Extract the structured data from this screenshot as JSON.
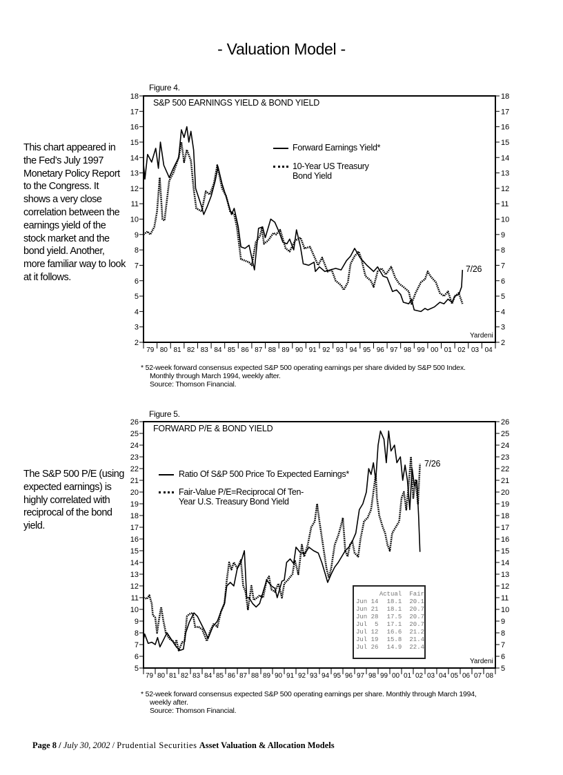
{
  "page_title": "- Valuation Model -",
  "side_text_1": "This chart appeared in the Fed’s July 1997 Monetary Policy Report to the Congress. It shows a very close correlation between the earnings yield of the stock market and the bond yield. Another, more familiar way to look at it follows.",
  "side_text_2": "The S&P 500 P/E (using expected earnings) is highly correlated with reciprocal of the bond yield.",
  "footer": {
    "page": "Page 8 /",
    "date": "July 30, 2002",
    "sep": "/",
    "firm": "Prudential Securities",
    "report": "Asset Valuation & Allocation Models"
  },
  "chart_data": [
    {
      "type": "line",
      "figure_label": "Figure 4.",
      "title": "S&P 500 EARNINGS YIELD & BOND YIELD",
      "source_tag": "Yardeni",
      "end_label": "7/26",
      "ylim": [
        2,
        18
      ],
      "yticks": [
        2,
        3,
        4,
        5,
        6,
        7,
        8,
        9,
        10,
        11,
        12,
        13,
        14,
        15,
        16,
        17,
        18
      ],
      "xticklabels": [
        "79",
        "80",
        "81",
        "82",
        "83",
        "84",
        "85",
        "86",
        "87",
        "88",
        "89",
        "90",
        "91",
        "92",
        "93",
        "94",
        "95",
        "96",
        "97",
        "98",
        "99",
        "00",
        "01",
        "02",
        "03",
        "04"
      ],
      "xlim": [
        1979,
        2005
      ],
      "legend_placement": "upper-center",
      "footnote": [
        "*   52-week forward consensus expected S&P 500 operating earnings per share divided by S&P 500 Index.",
        "Monthly through March 1994, weekly after.",
        "Source: Thomson Financial."
      ],
      "series": [
        {
          "name": "Forward Earnings Yield*",
          "style": "solid",
          "color": "#000000",
          "x": [
            1979.0,
            1979.1,
            1979.3,
            1979.6,
            1979.9,
            1980.1,
            1980.25,
            1980.5,
            1980.9,
            1981.2,
            1981.6,
            1981.8,
            1982.0,
            1982.2,
            1982.35,
            1982.5,
            1982.7,
            1982.85,
            1983.3,
            1983.45,
            1983.7,
            1984.0,
            1984.3,
            1984.5,
            1984.8,
            1985.2,
            1985.5,
            1985.7,
            1986.0,
            1986.2,
            1986.5,
            1986.8,
            1987.0,
            1987.2,
            1987.5,
            1987.8,
            1988.0,
            1988.4,
            1988.7,
            1989.0,
            1989.3,
            1989.6,
            1989.8,
            1990.1,
            1990.3,
            1990.6,
            1990.8,
            1991.2,
            1991.6,
            1991.7,
            1992.0,
            1992.4,
            1992.8,
            1993.2,
            1993.6,
            1994.0,
            1994.3,
            1994.6,
            1995.0,
            1995.5,
            1996.0,
            1996.3,
            1996.7,
            1997.0,
            1997.4,
            1997.7,
            1998.0,
            1998.2,
            1998.6,
            1998.8,
            1999.0,
            1999.5,
            1999.8,
            2000.0,
            2000.5,
            2000.9,
            2001.2,
            2001.5,
            2001.8,
            2002.0,
            2002.3,
            2002.5,
            2002.57
          ],
          "y": [
            13.6,
            12.6,
            14.2,
            13.7,
            14.6,
            13.3,
            15.0,
            13.5,
            12.7,
            13.3,
            14.0,
            15.8,
            15.3,
            16.0,
            15.0,
            15.7,
            14.5,
            12.0,
            10.8,
            10.3,
            10.8,
            11.5,
            12.5,
            13.4,
            12.3,
            11.2,
            10.3,
            10.7,
            9.5,
            8.2,
            8.1,
            8.3,
            7.5,
            6.7,
            9.4,
            9.5,
            8.8,
            10.0,
            9.8,
            9.2,
            8.5,
            8.4,
            8.7,
            8.0,
            9.3,
            8.2,
            7.1,
            7.0,
            7.2,
            6.6,
            6.9,
            6.6,
            6.7,
            6.8,
            6.7,
            7.3,
            7.6,
            8.1,
            7.5,
            7.0,
            6.6,
            6.9,
            6.3,
            6.2,
            5.3,
            5.4,
            5.1,
            4.6,
            4.5,
            4.8,
            4.1,
            4.0,
            4.2,
            4.1,
            4.3,
            4.6,
            4.5,
            4.8,
            4.6,
            5.0,
            5.1,
            5.6,
            6.7
          ]
        },
        {
          "name": "10-Year US Treasury Bond Yield",
          "style": "dotted",
          "color": "#000000",
          "x": [
            1979.0,
            1979.3,
            1979.5,
            1979.8,
            1980.0,
            1980.2,
            1980.4,
            1980.55,
            1980.9,
            1981.2,
            1981.6,
            1981.8,
            1982.0,
            1982.2,
            1982.5,
            1982.7,
            1982.9,
            1983.3,
            1983.6,
            1983.9,
            1984.2,
            1984.45,
            1984.8,
            1985.1,
            1985.4,
            1985.7,
            1985.9,
            1986.2,
            1986.5,
            1986.8,
            1987.0,
            1987.3,
            1987.6,
            1987.75,
            1987.9,
            1988.2,
            1988.6,
            1988.8,
            1989.1,
            1989.5,
            1989.8,
            1990.2,
            1990.6,
            1990.9,
            1991.3,
            1991.6,
            1991.9,
            1992.2,
            1992.6,
            1992.9,
            1993.2,
            1993.6,
            1993.8,
            1994.1,
            1994.3,
            1994.6,
            1994.9,
            1995.1,
            1995.4,
            1995.8,
            1996.0,
            1996.3,
            1996.6,
            1996.9,
            1997.3,
            1997.6,
            1997.9,
            1998.2,
            1998.6,
            1998.8,
            1999.1,
            1999.5,
            1999.8,
            2000.0,
            2000.2,
            2000.6,
            2000.9,
            2001.2,
            2001.5,
            2001.8,
            2002.0,
            2002.3,
            2002.57
          ],
          "y": [
            9.0,
            9.2,
            9.0,
            9.5,
            10.5,
            12.7,
            10.0,
            9.9,
            12.5,
            13.0,
            14.0,
            15.0,
            13.7,
            14.5,
            13.8,
            12.0,
            10.7,
            10.5,
            11.8,
            11.6,
            12.3,
            13.5,
            12.0,
            11.5,
            10.5,
            10.3,
            9.5,
            7.4,
            7.3,
            7.2,
            7.0,
            8.5,
            8.9,
            9.4,
            8.4,
            8.6,
            9.1,
            9.0,
            9.3,
            8.1,
            7.9,
            8.6,
            8.8,
            8.1,
            8.2,
            7.6,
            7.0,
            7.5,
            6.6,
            6.7,
            6.0,
            5.7,
            5.4,
            5.9,
            7.1,
            7.6,
            7.9,
            7.4,
            6.3,
            6.0,
            5.6,
            6.6,
            6.8,
            6.4,
            6.9,
            6.2,
            5.8,
            5.6,
            5.3,
            4.5,
            5.2,
            5.9,
            6.1,
            6.6,
            6.3,
            5.9,
            5.2,
            5.0,
            5.3,
            4.5,
            5.0,
            5.2,
            4.5
          ]
        }
      ]
    },
    {
      "type": "line",
      "figure_label": "Figure 5.",
      "title": "FORWARD P/E & BOND YIELD",
      "source_tag": "Yardeni",
      "end_label": "7/26",
      "ylim": [
        5,
        26
      ],
      "yticks": [
        5,
        6,
        7,
        8,
        9,
        10,
        11,
        12,
        13,
        14,
        15,
        16,
        17,
        18,
        19,
        20,
        21,
        22,
        23,
        24,
        25,
        26
      ],
      "xticklabels": [
        "79",
        "80",
        "81",
        "82",
        "83",
        "84",
        "85",
        "86",
        "87",
        "88",
        "89",
        "90",
        "91",
        "92",
        "93",
        "94",
        "95",
        "96",
        "97",
        "98",
        "99",
        "00",
        "01",
        "02",
        "03",
        "04",
        "05",
        "06",
        "07",
        "08"
      ],
      "xlim": [
        1979,
        2009
      ],
      "legend_placement": "upper-left",
      "footnote": [
        "*   52-week forward consensus expected S&P 500 operating earnings per share. Monthly through March 1994,",
        "weekly after.",
        "Source: Thomson Financial."
      ],
      "table": {
        "headers": [
          "",
          "Actual",
          "Fair"
        ],
        "rows": [
          [
            "Jun 14",
            "18.1",
            "20.1"
          ],
          [
            "Jun 21",
            "18.1",
            "20.7"
          ],
          [
            "Jun 28",
            "17.5",
            "20.7"
          ],
          [
            "Jul  5",
            "17.1",
            "20.7"
          ],
          [
            "Jul 12",
            "16.6",
            "21.2"
          ],
          [
            "Jul 19",
            "15.8",
            "21.4"
          ],
          [
            "Jul 26",
            "14.9",
            "22.4"
          ]
        ]
      },
      "series": [
        {
          "name": "Ratio Of S&P 500 Price To Expected Earnings*",
          "style": "solid",
          "color": "#000000",
          "x": [
            1979.0,
            1979.1,
            1979.4,
            1979.7,
            1980.0,
            1980.2,
            1980.4,
            1980.8,
            1981.0,
            1981.4,
            1981.8,
            1982.1,
            1982.4,
            1982.6,
            1982.9,
            1983.3,
            1983.6,
            1983.9,
            1984.3,
            1984.5,
            1984.9,
            1985.3,
            1985.6,
            1985.9,
            1986.1,
            1986.4,
            1986.7,
            1987.0,
            1987.3,
            1987.6,
            1987.8,
            1988.0,
            1988.3,
            1988.6,
            1988.9,
            1989.2,
            1989.5,
            1989.9,
            1990.2,
            1990.4,
            1990.8,
            1991.0,
            1991.2,
            1991.5,
            1991.8,
            1992.0,
            1992.4,
            1992.8,
            1993.1,
            1993.5,
            1993.9,
            1994.2,
            1994.5,
            1994.7,
            1995.0,
            1995.3,
            1995.6,
            1995.9,
            1996.2,
            1996.5,
            1996.8,
            1997.1,
            1997.4,
            1997.7,
            1998.0,
            1998.2,
            1998.4,
            1998.6,
            1998.8,
            1999.0,
            1999.2,
            1999.5,
            1999.7,
            1999.9,
            2000.1,
            2000.4,
            2000.6,
            2000.9,
            2001.1,
            2001.3,
            2001.5,
            2001.7,
            2001.9,
            2002.1,
            2002.3,
            2002.45,
            2002.57
          ],
          "y": [
            7.4,
            7.9,
            7.1,
            7.2,
            7.0,
            7.6,
            6.8,
            7.6,
            8.0,
            7.4,
            6.8,
            6.5,
            6.6,
            8.0,
            8.9,
            9.7,
            9.4,
            8.8,
            8.0,
            7.5,
            8.5,
            9.0,
            9.8,
            10.5,
            12.0,
            12.3,
            12.0,
            13.5,
            14.0,
            15.0,
            11.0,
            11.0,
            10.5,
            10.2,
            10.5,
            11.5,
            12.5,
            12.0,
            11.8,
            11.0,
            12.4,
            12.5,
            14.0,
            14.3,
            13.9,
            15.3,
            14.8,
            14.8,
            15.3,
            15.0,
            14.8,
            14.0,
            13.0,
            12.3,
            13.0,
            13.6,
            14.0,
            14.5,
            15.0,
            15.3,
            15.8,
            16.5,
            18.5,
            19.0,
            20.0,
            22.0,
            21.5,
            22.5,
            21.0,
            24.0,
            25.2,
            24.5,
            22.5,
            25.2,
            23.5,
            24.0,
            22.5,
            23.0,
            21.0,
            22.3,
            21.0,
            18.5,
            22.0,
            20.5,
            21.0,
            18.0,
            14.9
          ]
        },
        {
          "name": "Fair-Value P/E=Reciprocal Of Ten-Year U.S. Treasury Bond Yield",
          "style": "dotted",
          "color": "#000000",
          "x": [
            1979.0,
            1979.3,
            1979.5,
            1979.7,
            1979.8,
            1980.0,
            1980.15,
            1980.3,
            1980.5,
            1980.7,
            1980.9,
            1981.2,
            1981.5,
            1981.7,
            1981.8,
            1982.0,
            1982.3,
            1982.5,
            1982.7,
            1982.9,
            1983.2,
            1983.4,
            1983.7,
            1984.0,
            1984.4,
            1984.7,
            1985.0,
            1985.3,
            1985.6,
            1985.9,
            1986.1,
            1986.3,
            1986.5,
            1986.7,
            1987.0,
            1987.3,
            1987.5,
            1987.7,
            1987.9,
            1988.2,
            1988.4,
            1988.7,
            1988.9,
            1989.2,
            1989.5,
            1989.7,
            1989.9,
            1990.2,
            1990.5,
            1990.8,
            1991.0,
            1991.3,
            1991.7,
            1991.9,
            1992.2,
            1992.5,
            1992.7,
            1993.0,
            1993.3,
            1993.6,
            1993.8,
            1994.0,
            1994.3,
            1994.6,
            1994.8,
            1995.0,
            1995.3,
            1995.6,
            1995.8,
            1996.0,
            1996.2,
            1996.4,
            1996.6,
            1996.8,
            1997.0,
            1997.3,
            1997.5,
            1997.8,
            1998.1,
            1998.4,
            1998.6,
            1998.8,
            1998.9,
            1999.1,
            1999.4,
            1999.6,
            1999.8,
            2000.0,
            2000.2,
            2000.5,
            2000.8,
            2001.0,
            2001.2,
            2001.4,
            2001.6,
            2001.8,
            2002.0,
            2002.2,
            2002.4,
            2002.57
          ],
          "y": [
            11.0,
            10.9,
            11.2,
            10.5,
            9.5,
            9.3,
            8.0,
            9.0,
            10.2,
            9.0,
            8.0,
            7.5,
            7.3,
            7.0,
            7.4,
            6.5,
            7.2,
            7.3,
            9.4,
            9.6,
            9.7,
            8.5,
            8.5,
            8.3,
            7.3,
            8.2,
            8.8,
            8.5,
            9.8,
            10.5,
            12.5,
            14.0,
            13.4,
            14.0,
            13.5,
            14.2,
            12.0,
            11.5,
            10.0,
            12.0,
            10.8,
            11.0,
            11.2,
            11.0,
            12.5,
            12.8,
            11.7,
            11.5,
            12.2,
            11.0,
            12.2,
            12.5,
            13.0,
            14.2,
            13.0,
            15.5,
            14.5,
            15.5,
            17.0,
            17.5,
            19.0,
            17.5,
            15.5,
            13.5,
            12.7,
            13.5,
            15.5,
            16.3,
            17.0,
            17.8,
            15.0,
            14.5,
            15.5,
            15.8,
            14.8,
            14.5,
            16.0,
            17.5,
            17.8,
            18.5,
            20.0,
            21.5,
            19.5,
            18.0,
            17.0,
            16.5,
            15.5,
            15.0,
            16.5,
            17.0,
            17.5,
            19.5,
            20.0,
            18.5,
            20.5,
            23.0,
            19.5,
            21.0,
            19.0,
            22.4
          ]
        }
      ]
    }
  ]
}
